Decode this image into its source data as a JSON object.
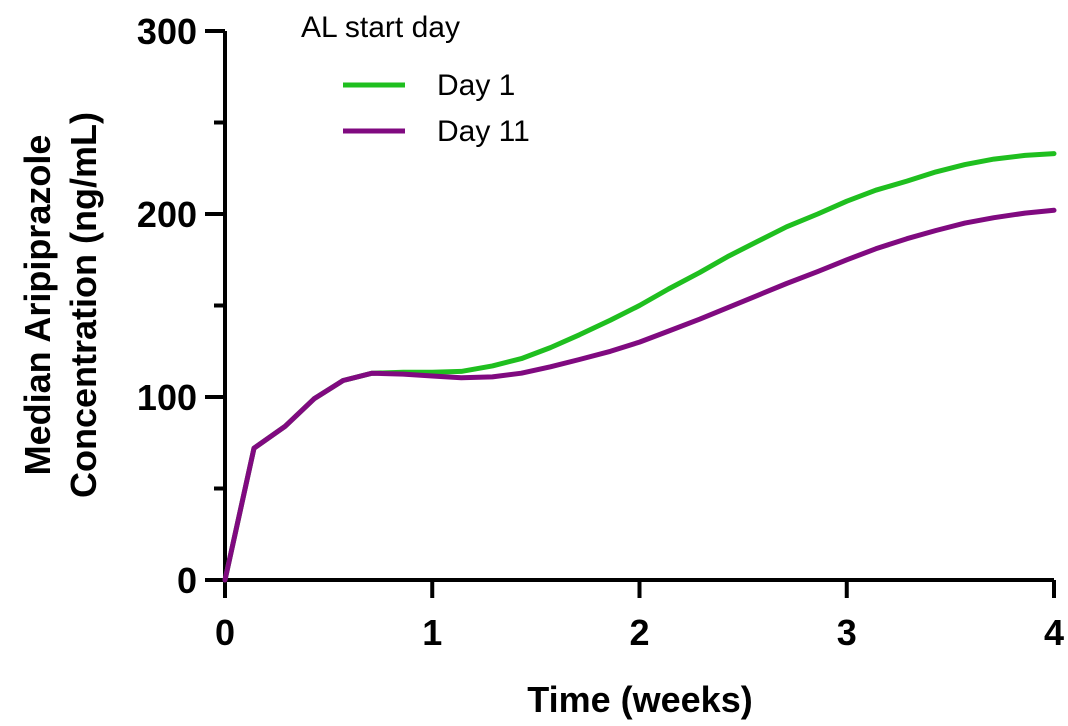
{
  "chart_data": {
    "type": "line",
    "xlabel": "Time (weeks)",
    "ylabel_lines": [
      "Median Aripiprazole",
      "Concentration (ng/mL)"
    ],
    "xlim": [
      0,
      4
    ],
    "ylim": [
      0,
      300
    ],
    "x_ticks": [
      0,
      1,
      2,
      3,
      4
    ],
    "y_ticks": [
      0,
      100,
      200,
      300
    ],
    "y_minor_ticks": [
      50,
      150,
      250
    ],
    "grid": false,
    "legend": {
      "title": "AL start day",
      "position": "top-left"
    },
    "series": [
      {
        "name": "Day 1",
        "color": "#1fbf1f",
        "points": [
          [
            0,
            0
          ],
          [
            0.14,
            72
          ],
          [
            0.29,
            84
          ],
          [
            0.43,
            99
          ],
          [
            0.57,
            109
          ],
          [
            0.71,
            113
          ],
          [
            0.86,
            113.5
          ],
          [
            1.0,
            113.5
          ],
          [
            1.14,
            114
          ],
          [
            1.29,
            117
          ],
          [
            1.43,
            121
          ],
          [
            1.57,
            127
          ],
          [
            1.71,
            134
          ],
          [
            1.86,
            142
          ],
          [
            2.0,
            150
          ],
          [
            2.14,
            159
          ],
          [
            2.29,
            168
          ],
          [
            2.43,
            177
          ],
          [
            2.57,
            185
          ],
          [
            2.71,
            193
          ],
          [
            2.86,
            200
          ],
          [
            3.0,
            207
          ],
          [
            3.14,
            213
          ],
          [
            3.29,
            218
          ],
          [
            3.43,
            223
          ],
          [
            3.57,
            227
          ],
          [
            3.71,
            230
          ],
          [
            3.86,
            232
          ],
          [
            4.0,
            233
          ]
        ]
      },
      {
        "name": "Day 11",
        "color": "#800a80",
        "points": [
          [
            0,
            0
          ],
          [
            0.14,
            72
          ],
          [
            0.29,
            84
          ],
          [
            0.43,
            99
          ],
          [
            0.57,
            109
          ],
          [
            0.71,
            113
          ],
          [
            0.86,
            112.5
          ],
          [
            1.0,
            111.5
          ],
          [
            1.14,
            110.5
          ],
          [
            1.29,
            111
          ],
          [
            1.43,
            113
          ],
          [
            1.57,
            116.5
          ],
          [
            1.71,
            120.5
          ],
          [
            1.86,
            125
          ],
          [
            2.0,
            130
          ],
          [
            2.14,
            136
          ],
          [
            2.29,
            142.5
          ],
          [
            2.43,
            149
          ],
          [
            2.57,
            155.5
          ],
          [
            2.71,
            162
          ],
          [
            2.86,
            168.5
          ],
          [
            3.0,
            175
          ],
          [
            3.14,
            181
          ],
          [
            3.29,
            186.5
          ],
          [
            3.43,
            191
          ],
          [
            3.57,
            195
          ],
          [
            3.71,
            198
          ],
          [
            3.86,
            200.5
          ],
          [
            4.0,
            202
          ]
        ]
      }
    ]
  }
}
